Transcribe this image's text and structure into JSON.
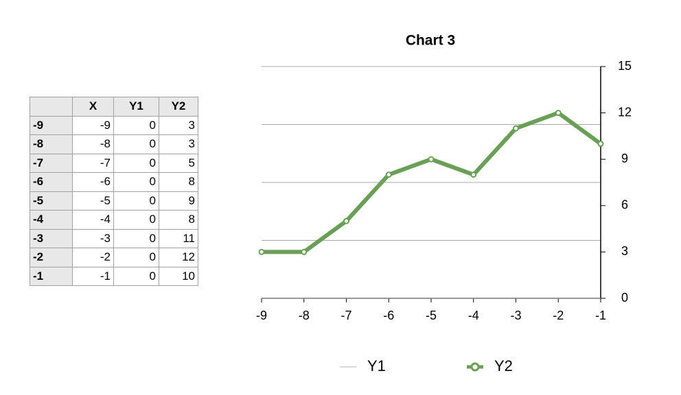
{
  "table": {
    "columns": [
      "X",
      "Y1",
      "Y2"
    ],
    "rows": [
      {
        "label": "-9",
        "cells": [
          -9,
          0,
          3
        ]
      },
      {
        "label": "-8",
        "cells": [
          -8,
          0,
          3
        ]
      },
      {
        "label": "-7",
        "cells": [
          -7,
          0,
          5
        ]
      },
      {
        "label": "-6",
        "cells": [
          -6,
          0,
          8
        ]
      },
      {
        "label": "-5",
        "cells": [
          -5,
          0,
          9
        ]
      },
      {
        "label": "-4",
        "cells": [
          -4,
          0,
          8
        ]
      },
      {
        "label": "-3",
        "cells": [
          -3,
          0,
          11
        ]
      },
      {
        "label": "-2",
        "cells": [
          -2,
          0,
          12
        ]
      },
      {
        "label": "-1",
        "cells": [
          -1,
          0,
          10
        ]
      }
    ]
  },
  "chart_data": {
    "type": "line",
    "title": "Chart 3",
    "x": [
      -9,
      -8,
      -7,
      -6,
      -5,
      -4,
      -3,
      -2,
      -1
    ],
    "xlim": [
      -9,
      -1
    ],
    "xticks": [
      -9,
      -8,
      -7,
      -6,
      -5,
      -4,
      -3,
      -2,
      -1
    ],
    "ylim": [
      0,
      15
    ],
    "yticks": [
      0,
      3,
      6,
      9,
      12,
      15
    ],
    "y_axis_side": "right",
    "gridlines": [
      3.75,
      7.5,
      11.25,
      15
    ],
    "legend": "bottom",
    "series": [
      {
        "name": "Y1",
        "color": "#b0b0b0",
        "marker": false,
        "values": [
          0,
          0,
          0,
          0,
          0,
          0,
          0,
          0,
          0
        ]
      },
      {
        "name": "Y2",
        "color": "#6a9f58",
        "marker": true,
        "values": [
          3,
          3,
          5,
          8,
          9,
          8,
          11,
          12,
          10
        ]
      }
    ]
  }
}
